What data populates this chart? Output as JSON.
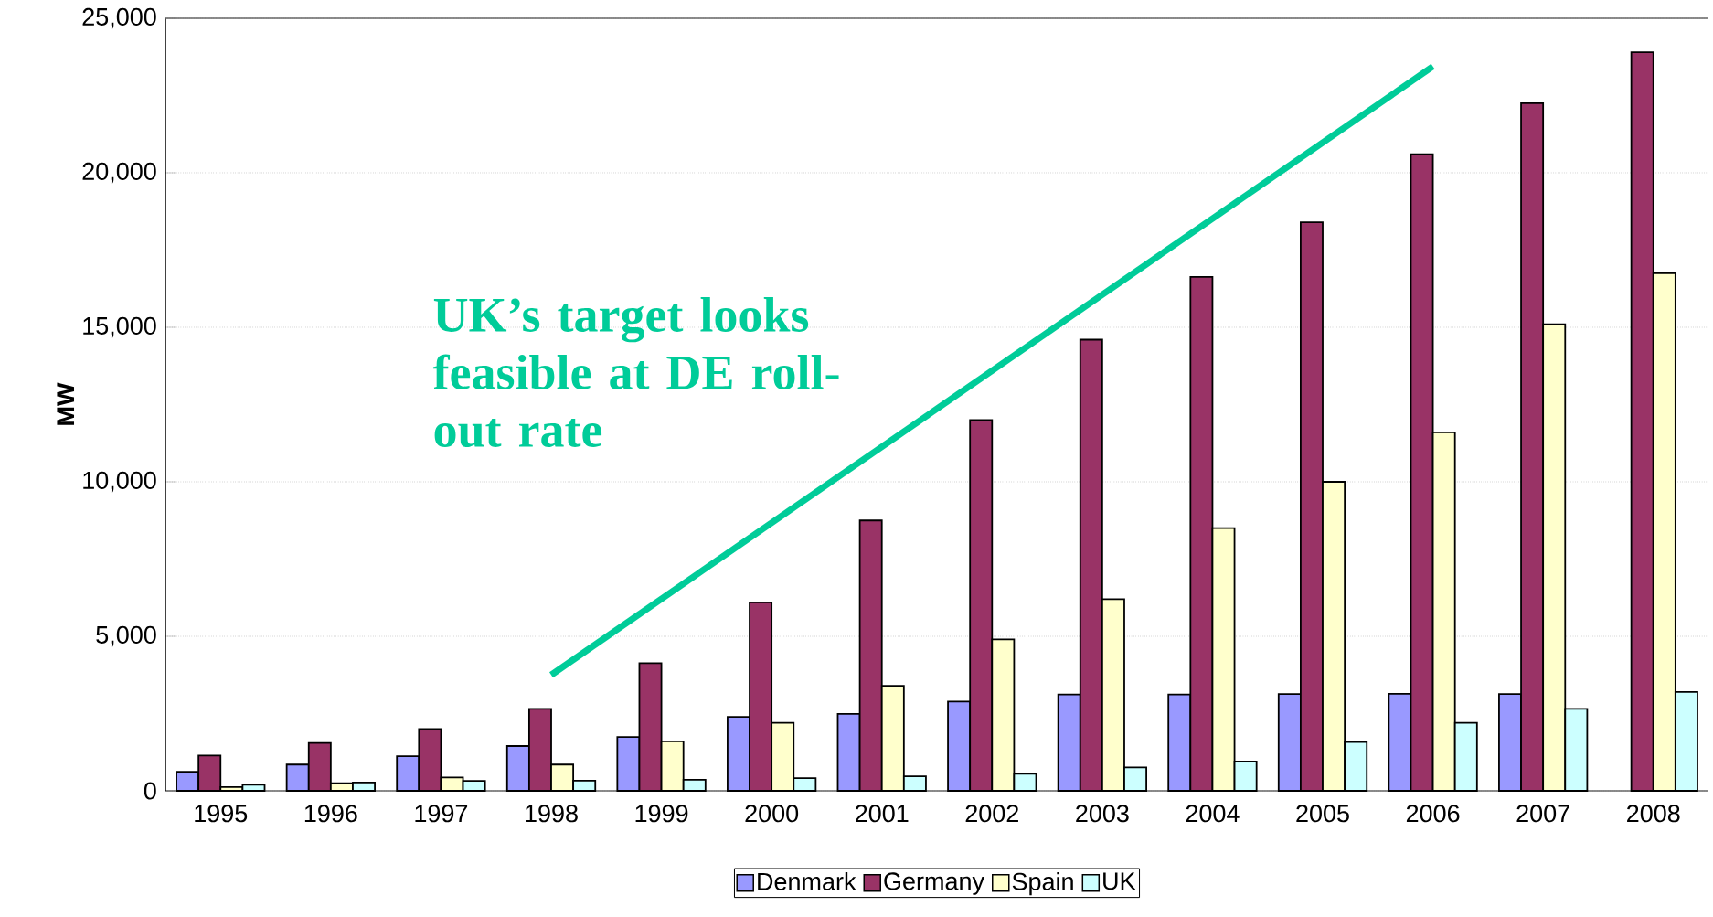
{
  "chart_data": {
    "type": "bar",
    "ylabel": "MW",
    "categories": [
      "1995",
      "1996",
      "1997",
      "1998",
      "1999",
      "2000",
      "2001",
      "2002",
      "2003",
      "2004",
      "2005",
      "2006",
      "2007",
      "2008"
    ],
    "series": [
      {
        "name": "Denmark",
        "color": "#9999ff",
        "values": [
          620,
          850,
          1120,
          1450,
          1740,
          2390,
          2490,
          2890,
          3120,
          3120,
          3130,
          3140,
          3130,
          null
        ]
      },
      {
        "name": "Germany",
        "color": "#993366",
        "values": [
          1140,
          1550,
          2000,
          2650,
          4130,
          6100,
          8750,
          12000,
          14600,
          16630,
          18400,
          20600,
          22250,
          23900
        ]
      },
      {
        "name": "Spain",
        "color": "#ffffcc",
        "values": [
          120,
          250,
          430,
          850,
          1600,
          2200,
          3400,
          4900,
          6200,
          8500,
          10000,
          11600,
          15100,
          16750
        ]
      },
      {
        "name": "UK",
        "color": "#ccffff",
        "values": [
          200,
          270,
          320,
          330,
          360,
          410,
          470,
          550,
          760,
          950,
          1580,
          2200,
          2650,
          3200
        ]
      },
      {
        "type": "line",
        "color": "#00cc99",
        "values": [
          null,
          null,
          null,
          3750,
          null,
          null,
          null,
          null,
          null,
          null,
          null,
          23440,
          null,
          null
        ]
      }
    ],
    "annotations": [
      "UK’s target looks feasible at DE roll-out rate"
    ],
    "ylim": [
      0,
      25000
    ],
    "yticks": [
      {
        "value": 0,
        "label": "0"
      },
      {
        "value": 5000,
        "label": "5,000"
      },
      {
        "value": 10000,
        "label": "10,000"
      },
      {
        "value": 15000,
        "label": "15,000"
      },
      {
        "value": 20000,
        "label": "20,000"
      },
      {
        "value": 25000,
        "label": "25,000"
      }
    ],
    "grid": "y",
    "legend": "bottom"
  }
}
